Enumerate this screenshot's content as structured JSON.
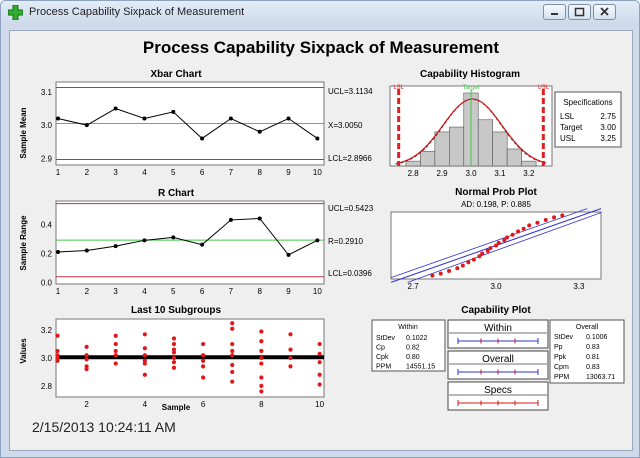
{
  "window": {
    "title": "Process Capability Sixpack of Measurement"
  },
  "main_title": "Process Capability Sixpack of Measurement",
  "timestamp": "2/15/2013 10:24:11 AM",
  "charts": {
    "xbar": {
      "title": "Xbar Chart",
      "ylabel": "Sample Mean",
      "ucl_label": "UCL=3.1134",
      "center_label": "X=3.0050",
      "lcl_label": "LCL=2.8966",
      "x_ticks": [
        "1",
        "2",
        "3",
        "4",
        "5",
        "6",
        "7",
        "8",
        "9",
        "10"
      ],
      "y_ticks": [
        "2.9",
        "3.0",
        "3.1"
      ]
    },
    "r": {
      "title": "R Chart",
      "ylabel": "Sample Range",
      "ucl_label": "UCL=0.5423",
      "center_label": "R=0.2910",
      "lcl_label": "LCL=0.0396",
      "x_ticks": [
        "1",
        "2",
        "3",
        "4",
        "5",
        "6",
        "7",
        "8",
        "9",
        "10"
      ],
      "y_ticks": [
        "0.0",
        "0.2",
        "0.4"
      ]
    },
    "last10": {
      "title": "Last 10 Subgroups",
      "ylabel": "Values",
      "xlabel": "Sample",
      "x_ticks": [
        "2",
        "4",
        "6",
        "8",
        "10"
      ],
      "y_ticks": [
        "2.8",
        "3.0",
        "3.2"
      ]
    },
    "histogram": {
      "title": "Capability Histogram",
      "lsl_tag": "LSL",
      "usl_tag": "USL",
      "target_tag": "Target",
      "x_ticks": [
        "2.8",
        "2.9",
        "3.0",
        "3.1",
        "3.2"
      ],
      "specs_title": "Specifications",
      "specs": [
        {
          "name": "LSL",
          "value": "2.75"
        },
        {
          "name": "Target",
          "value": "3.00"
        },
        {
          "name": "USL",
          "value": "3.25"
        }
      ]
    },
    "normal": {
      "title": "Normal Prob Plot",
      "subtitle": "AD: 0.198, P: 0.885",
      "x_ticks": [
        "2.7",
        "3.0",
        "3.3"
      ]
    },
    "capability": {
      "title": "Capability Plot",
      "within_box": {
        "title": "Within",
        "rows": [
          [
            "StDev",
            "0.1022"
          ],
          [
            "Cp",
            "0.82"
          ],
          [
            "Cpk",
            "0.80"
          ],
          [
            "PPM",
            "14551.15"
          ]
        ]
      },
      "overall_box": {
        "title": "Overall",
        "rows": [
          [
            "StDev",
            "0.1006"
          ],
          [
            "Pp",
            "0.83"
          ],
          [
            "Ppk",
            "0.81"
          ],
          [
            "Cpm",
            "0.83"
          ],
          [
            "PPM",
            "13063.71"
          ]
        ]
      },
      "bars": [
        "Within",
        "Overall",
        "Specs"
      ]
    }
  },
  "colors": {
    "limit": "#c0324a",
    "center": "#44c844",
    "series": "#000000",
    "points": "#e01818",
    "spec": "#e02020",
    "normal_line": "#3030d0"
  },
  "chart_data": [
    {
      "type": "line",
      "title": "Xbar Chart",
      "ylabel": "Sample Mean",
      "x": [
        1,
        2,
        3,
        4,
        5,
        6,
        7,
        8,
        9,
        10
      ],
      "values": [
        3.02,
        3.0,
        3.05,
        3.02,
        3.04,
        2.96,
        3.02,
        2.98,
        3.02,
        2.96
      ],
      "ylim": [
        2.88,
        3.13
      ],
      "ucl": 3.1134,
      "center": 3.005,
      "lcl": 2.8966
    },
    {
      "type": "line",
      "title": "R Chart",
      "ylabel": "Sample Range",
      "x": [
        1,
        2,
        3,
        4,
        5,
        6,
        7,
        8,
        9,
        10
      ],
      "values": [
        0.21,
        0.22,
        0.25,
        0.29,
        0.31,
        0.26,
        0.43,
        0.44,
        0.19,
        0.29
      ],
      "ylim": [
        -0.01,
        0.56
      ],
      "ucl": 0.5423,
      "center": 0.291,
      "lcl": 0.0396
    },
    {
      "type": "scatter",
      "title": "Last 10 Subgroups",
      "ylabel": "Values",
      "xlabel": "Sample",
      "xlim": [
        0.95,
        10.15
      ],
      "ylim": [
        2.72,
        3.28
      ],
      "mean": 3.005,
      "points": [
        [
          1,
          3.16
        ],
        [
          1,
          3.05
        ],
        [
          1,
          3.02
        ],
        [
          1,
          3.0
        ],
        [
          1,
          2.98
        ],
        [
          2,
          3.08
        ],
        [
          2,
          3.02
        ],
        [
          2,
          2.99
        ],
        [
          2,
          2.94
        ],
        [
          2,
          2.92
        ],
        [
          3,
          3.16
        ],
        [
          3,
          3.1
        ],
        [
          3,
          3.05
        ],
        [
          3,
          3.02
        ],
        [
          3,
          2.96
        ],
        [
          4,
          3.17
        ],
        [
          4,
          3.07
        ],
        [
          4,
          3.02
        ],
        [
          4,
          2.98
        ],
        [
          4,
          2.96
        ],
        [
          4,
          2.88
        ],
        [
          5,
          3.14
        ],
        [
          5,
          3.1
        ],
        [
          5,
          3.06
        ],
        [
          5,
          3.04
        ],
        [
          5,
          3.0
        ],
        [
          5,
          2.97
        ],
        [
          5,
          2.93
        ],
        [
          6,
          3.1
        ],
        [
          6,
          3.02
        ],
        [
          6,
          2.98
        ],
        [
          6,
          2.94
        ],
        [
          6,
          2.86
        ],
        [
          7,
          3.25
        ],
        [
          7,
          3.21
        ],
        [
          7,
          3.1
        ],
        [
          7,
          3.05
        ],
        [
          7,
          3.02
        ],
        [
          7,
          2.95
        ],
        [
          7,
          2.9
        ],
        [
          7,
          2.83
        ],
        [
          8,
          3.19
        ],
        [
          8,
          3.12
        ],
        [
          8,
          3.05
        ],
        [
          8,
          3.0
        ],
        [
          8,
          2.96
        ],
        [
          8,
          2.86
        ],
        [
          8,
          2.8
        ],
        [
          8,
          2.76
        ],
        [
          9,
          3.17
        ],
        [
          9,
          3.06
        ],
        [
          9,
          3.0
        ],
        [
          9,
          2.94
        ],
        [
          10,
          3.1
        ],
        [
          10,
          3.03
        ],
        [
          10,
          2.97
        ],
        [
          10,
          2.88
        ],
        [
          10,
          2.81
        ]
      ]
    },
    {
      "type": "bar",
      "title": "Capability Histogram",
      "bin_edges": [
        2.775,
        2.825,
        2.875,
        2.925,
        2.975,
        3.025,
        3.075,
        3.125,
        3.175,
        3.225
      ],
      "counts": [
        2,
        6,
        14,
        16,
        30,
        19,
        14,
        7,
        2
      ],
      "xlim": [
        2.72,
        3.28
      ],
      "lsl": 2.75,
      "target": 3.0,
      "usl": 3.25
    },
    {
      "type": "scatter",
      "title": "Normal Prob Plot",
      "subtitle": "AD: 0.198, P: 0.885",
      "xlim": [
        2.62,
        3.38
      ],
      "points": [
        [
          2.77,
          0.05
        ],
        [
          2.8,
          0.08
        ],
        [
          2.83,
          0.12
        ],
        [
          2.86,
          0.16
        ],
        [
          2.88,
          0.2
        ],
        [
          2.9,
          0.25
        ],
        [
          2.92,
          0.29
        ],
        [
          2.94,
          0.34
        ],
        [
          2.95,
          0.38
        ],
        [
          2.97,
          0.42
        ],
        [
          2.98,
          0.46
        ],
        [
          3.0,
          0.5
        ],
        [
          3.01,
          0.54
        ],
        [
          3.03,
          0.58
        ],
        [
          3.04,
          0.62
        ],
        [
          3.06,
          0.66
        ],
        [
          3.08,
          0.71
        ],
        [
          3.1,
          0.75
        ],
        [
          3.12,
          0.8
        ],
        [
          3.15,
          0.84
        ],
        [
          3.18,
          0.88
        ],
        [
          3.21,
          0.92
        ],
        [
          3.24,
          0.95
        ]
      ]
    }
  ]
}
